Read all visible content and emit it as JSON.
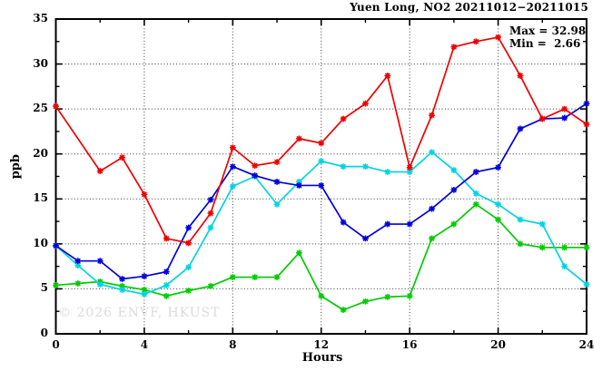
{
  "header": {
    "title": "Yuen Long, NO2 20211012−20211015"
  },
  "legend": {
    "max_line": "Max = 32.98",
    "min_line": "Min =  2.66"
  },
  "watermark": "© 2026 ENVF, HKUST",
  "axes": {
    "y_label": "ppb",
    "x_label": "Hours"
  },
  "colors": {
    "red": "#ee0000",
    "blue": "#0000dd",
    "cyan": "#00d4e0",
    "green": "#00cc00",
    "axis": "#000000",
    "grid": "#3a3a3a",
    "watermark_color": "#dbdbdb"
  },
  "chart_data": {
    "type": "line",
    "title": "Yuen Long, NO2 20211012−20211015",
    "xlabel": "Hours",
    "ylabel": "ppb",
    "xlim": [
      0,
      24
    ],
    "ylim": [
      0,
      35
    ],
    "x_major_ticks": [
      0,
      4,
      8,
      12,
      16,
      20,
      24
    ],
    "x_minor_ticks": [
      2,
      6,
      10,
      14,
      18,
      22
    ],
    "y_major_ticks": [
      0,
      5,
      10,
      15,
      20,
      25,
      30,
      35
    ],
    "y_minor_ticks": [
      2.5,
      7.5,
      12.5,
      17.5,
      22.5,
      27.5,
      32.5
    ],
    "x_grid_at": [
      4,
      8,
      12,
      16,
      20
    ],
    "y_grid_at": [
      5,
      10,
      15,
      20,
      25,
      30
    ],
    "grid": "dotted",
    "marker": "star",
    "legend_position": "top-right-inside",
    "stats": {
      "max": 32.98,
      "min": 2.66
    },
    "x": [
      0,
      1,
      2,
      3,
      4,
      5,
      6,
      7,
      8,
      9,
      10,
      11,
      12,
      13,
      14,
      15,
      16,
      17,
      18,
      19,
      20,
      21,
      22,
      23,
      24
    ],
    "series": [
      {
        "name": "red",
        "values": [
          25.3,
          null,
          18.1,
          19.6,
          15.5,
          10.6,
          10.1,
          13.4,
          20.7,
          18.7,
          19.1,
          21.7,
          21.2,
          23.9,
          25.6,
          28.7,
          18.5,
          24.3,
          31.9,
          32.5,
          32.98,
          28.7,
          23.9,
          25.0,
          23.3
        ]
      },
      {
        "name": "blue",
        "values": [
          9.8,
          8.1,
          8.1,
          6.1,
          6.4,
          6.9,
          11.8,
          14.9,
          18.6,
          17.6,
          16.9,
          16.5,
          16.5,
          12.4,
          10.6,
          12.2,
          12.2,
          13.9,
          16.0,
          18.0,
          18.5,
          22.8,
          23.9,
          24.0,
          25.6
        ]
      },
      {
        "name": "cyan",
        "values": [
          9.8,
          7.6,
          5.5,
          4.9,
          4.4,
          5.4,
          7.4,
          11.8,
          16.4,
          17.5,
          14.4,
          16.9,
          19.2,
          18.6,
          18.6,
          18.0,
          18.0,
          20.2,
          18.2,
          15.6,
          14.4,
          12.7,
          12.2,
          7.5,
          5.5
        ]
      },
      {
        "name": "green",
        "values": [
          5.4,
          5.6,
          5.8,
          5.3,
          4.9,
          4.2,
          4.8,
          5.3,
          6.3,
          6.3,
          6.3,
          9.0,
          4.2,
          2.66,
          3.6,
          4.1,
          4.2,
          10.6,
          12.2,
          14.4,
          12.7,
          10.0,
          9.6,
          9.6,
          9.6
        ]
      }
    ]
  }
}
